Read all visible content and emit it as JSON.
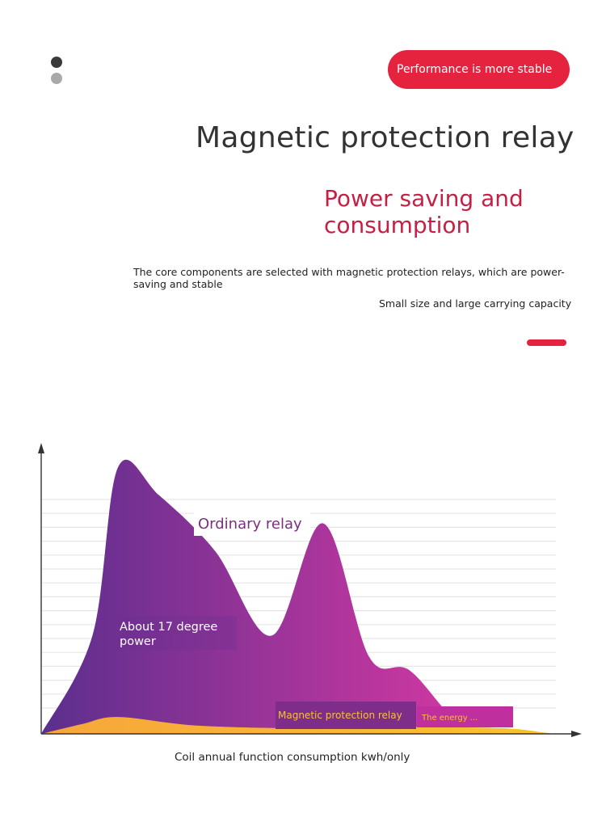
{
  "header": {
    "badge_text": "Performance is more stable",
    "title": "Magnetic protection relay",
    "subtitle": "Power saving and consumption",
    "description": "The core components are selected with magnetic protection relays, which are power-saving and stable",
    "caption": "Small size and large carrying capacity"
  },
  "colors": {
    "accent": "#e5233f",
    "subtitle": "#c61f44",
    "area_start": "#5b2f8e",
    "area_end": "#ea3aa6",
    "relay_fill": "#f9c22e"
  },
  "chart_data": {
    "type": "area",
    "xlabel": "Coil annual function consumption kwh/only",
    "ylabel": "",
    "grid": true,
    "series": [
      {
        "name": "Ordinary relay",
        "annotation": "About 17 degree power",
        "x": [
          0,
          0.1,
          0.15,
          0.23,
          0.34,
          0.45,
          0.55,
          0.64,
          0.72,
          0.83,
          0.96,
          1.0
        ],
        "values": [
          0,
          7,
          19,
          17,
          13,
          7,
          15,
          5.5,
          4.5,
          0.4,
          0.1,
          0
        ]
      },
      {
        "name": "Magnetic protection relay",
        "annotation": "The energy ...",
        "x": [
          0,
          0.08,
          0.15,
          0.3,
          0.5,
          0.7,
          0.9,
          0.98,
          1.0
        ],
        "values": [
          0,
          0.7,
          1.2,
          0.6,
          0.4,
          0.5,
          0.4,
          0.1,
          0
        ]
      }
    ]
  }
}
